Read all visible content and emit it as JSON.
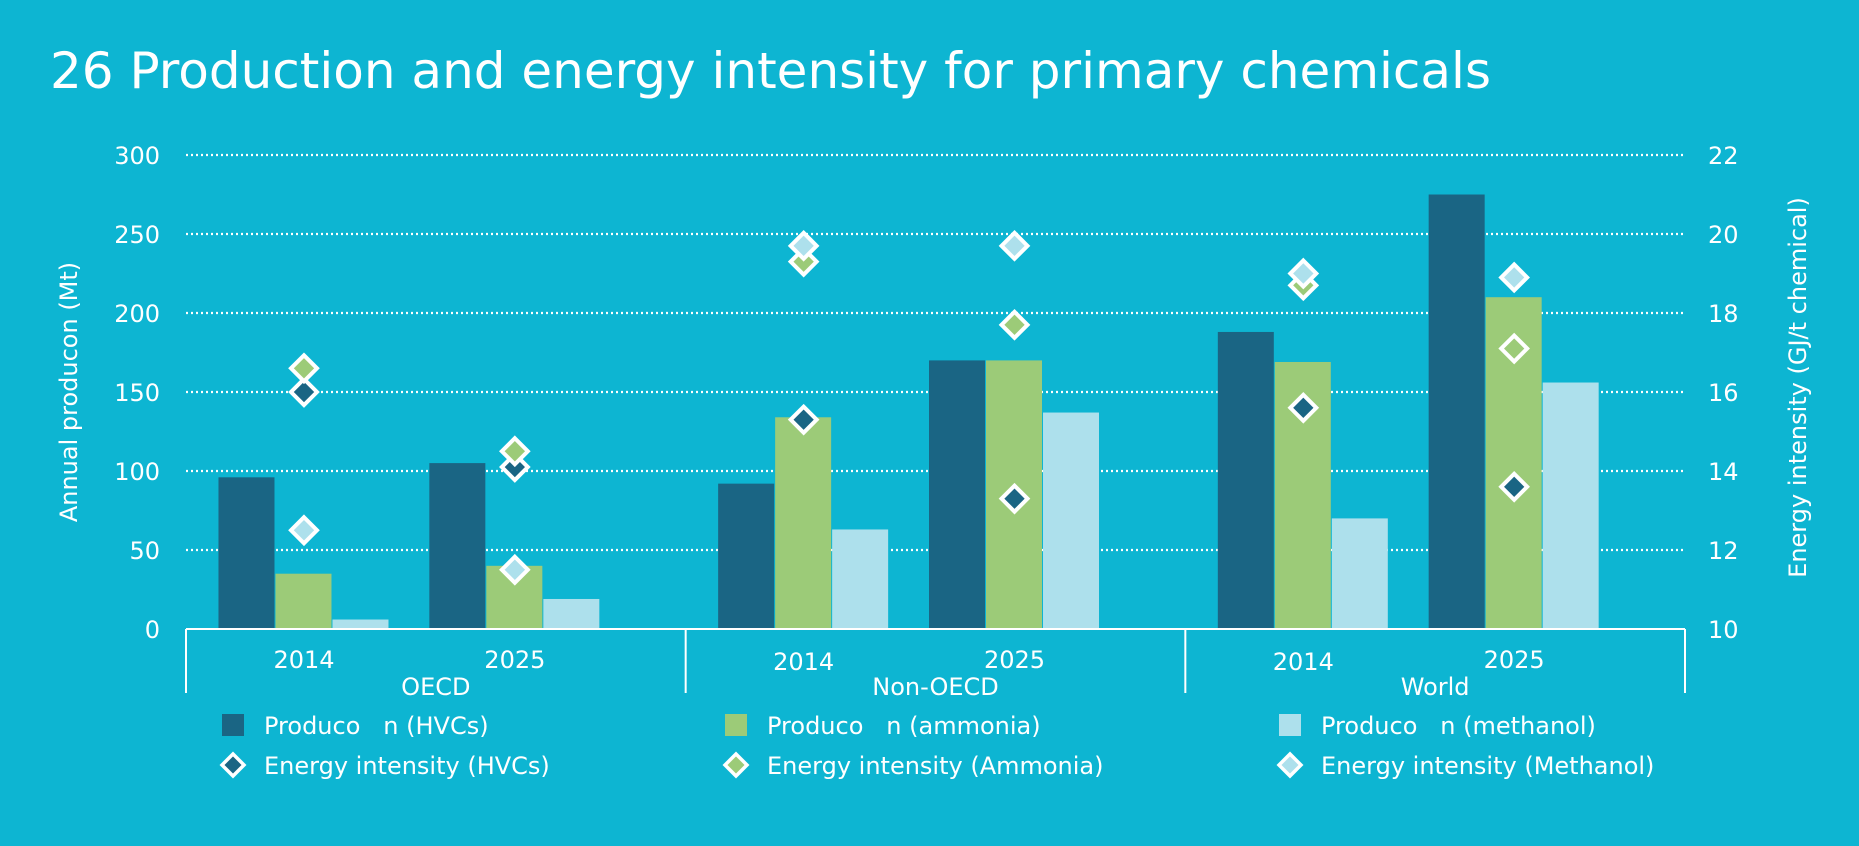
{
  "colors": {
    "background": "#0db5d2",
    "hvc": "#1a6584",
    "ammonia": "#9ccb78",
    "methanol": "#ade0ec",
    "text": "#ffffff"
  },
  "chart_data": {
    "type": "bar",
    "title": "26 Production and energy intensity for primary chemicals",
    "ylabel_left": "Annual producon (Mt)",
    "ylabel_right": "Energy intensity (GJ/t chemical)",
    "ylim_left": [
      0,
      300
    ],
    "yticks_left": [
      0,
      50,
      100,
      150,
      200,
      250,
      300
    ],
    "ylim_right": [
      10,
      22
    ],
    "yticks_right": [
      10,
      12,
      14,
      16,
      18,
      20,
      22
    ],
    "grid": true,
    "legend_position": "bottom",
    "groups": [
      {
        "name": "OECD",
        "years": [
          {
            "label": "2014",
            "bars": [
              96,
              35,
              6
            ],
            "markers": [
              16.0,
              16.6,
              12.5
            ]
          },
          {
            "label": "2025",
            "bars": [
              105,
              40,
              19
            ],
            "markers": [
              14.1,
              14.5,
              11.5
            ]
          }
        ]
      },
      {
        "name": "Non-OECD",
        "years": [
          {
            "label": "2014",
            "bars": [
              92,
              134,
              63
            ],
            "markers": [
              15.3,
              19.3,
              19.7
            ]
          },
          {
            "label": "2025",
            "bars": [
              170,
              170,
              137
            ],
            "markers": [
              13.3,
              17.7,
              19.7
            ]
          }
        ]
      },
      {
        "name": "World",
        "years": [
          {
            "label": "2014",
            "bars": [
              188,
              169,
              70
            ],
            "markers": [
              15.6,
              18.7,
              19.0
            ]
          },
          {
            "label": "2025",
            "bars": [
              275,
              210,
              156
            ],
            "markers": [
              13.6,
              17.1,
              18.9
            ]
          }
        ]
      }
    ],
    "series": [
      {
        "name": "Produco   n (HVCs)",
        "kind": "bar",
        "axis": "left",
        "color": "#1a6584"
      },
      {
        "name": "Produco   n (ammonia)",
        "kind": "bar",
        "axis": "left",
        "color": "#9ccb78"
      },
      {
        "name": "Produco   n (methanol)",
        "kind": "bar",
        "axis": "left",
        "color": "#ade0ec"
      },
      {
        "name": "Energy intensity (HVCs)",
        "kind": "marker",
        "axis": "right",
        "color": "#1a6584"
      },
      {
        "name": "Energy intensity (Ammonia)",
        "kind": "marker",
        "axis": "right",
        "color": "#9ccb78"
      },
      {
        "name": "Energy intensity (Methanol)",
        "kind": "marker",
        "axis": "right",
        "color": "#ade0ec"
      }
    ]
  }
}
